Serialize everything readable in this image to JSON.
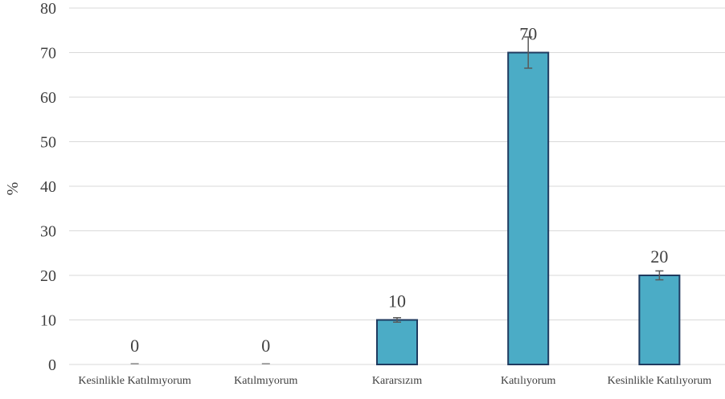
{
  "chart_data": {
    "type": "bar",
    "categories": [
      "Kesinlikle Katılmıyorum",
      "Katılmıyorum",
      "Kararsızım",
      "Katılıyorum",
      "Kesinlikle Katılıyorum"
    ],
    "values": [
      0,
      0,
      10,
      70,
      20
    ],
    "data_labels": [
      "0",
      "0",
      "10",
      "70",
      "20"
    ],
    "error_bars": [
      0,
      0,
      0.5,
      3.5,
      1
    ],
    "title": "",
    "xlabel": "",
    "ylabel": "%",
    "ylim": [
      0,
      80
    ],
    "yticks": [
      "0",
      "10",
      "20",
      "30",
      "40",
      "50",
      "60",
      "70",
      "80"
    ],
    "grid": true,
    "legend": "none",
    "colors": {
      "bar_fill": "#4bacc6",
      "bar_stroke": "#1f3a5f",
      "grid": "#d9d9d9",
      "error_bar": "#595959"
    }
  }
}
